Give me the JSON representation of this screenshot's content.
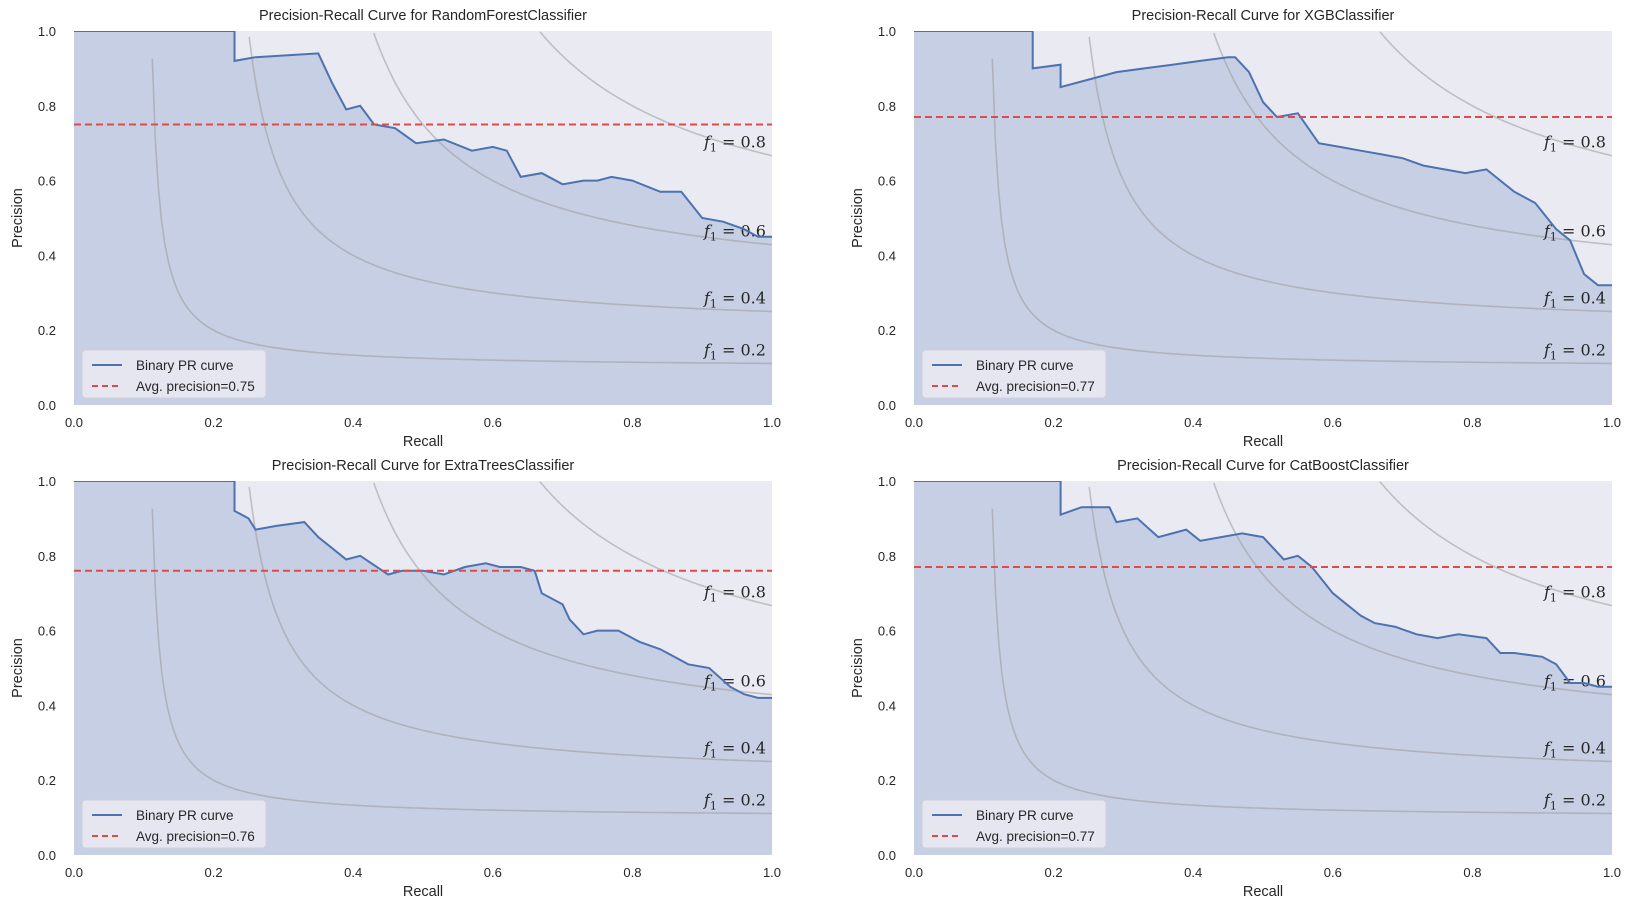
{
  "chart_data": [
    {
      "type": "line",
      "title": "Precision-Recall Curve for RandomForestClassifier",
      "xlabel": "Recall",
      "ylabel": "Precision",
      "xlim": [
        0,
        1
      ],
      "ylim": [
        0,
        1
      ],
      "xticks": [
        "0.0",
        "0.2",
        "0.4",
        "0.6",
        "0.8",
        "1.0"
      ],
      "yticks": [
        "0.0",
        "0.2",
        "0.4",
        "0.6",
        "0.8",
        "1.0"
      ],
      "grid": false,
      "legend_position": "bottom-left",
      "iso_f1": [
        {
          "f1": 0.2,
          "label": "0.2"
        },
        {
          "f1": 0.4,
          "label": "0.4"
        },
        {
          "f1": 0.6,
          "label": "0.6"
        },
        {
          "f1": 0.8,
          "label": "0.8"
        }
      ],
      "iso_prefix": "f",
      "iso_sub": "1",
      "iso_eq": " = ",
      "series": [
        {
          "name": "Binary PR curve",
          "step": "post",
          "color": "#4c72b0",
          "x": [
            0,
            0.23,
            0.23,
            0.26,
            0.35,
            0.37,
            0.39,
            0.41,
            0.43,
            0.46,
            0.49,
            0.53,
            0.57,
            0.6,
            0.62,
            0.64,
            0.67,
            0.7,
            0.73,
            0.75,
            0.77,
            0.8,
            0.84,
            0.87,
            0.9,
            0.93,
            0.96,
            0.98,
            1.0
          ],
          "y": [
            1.0,
            1.0,
            0.92,
            0.93,
            0.94,
            0.86,
            0.79,
            0.8,
            0.75,
            0.74,
            0.7,
            0.71,
            0.68,
            0.69,
            0.68,
            0.61,
            0.62,
            0.59,
            0.6,
            0.6,
            0.61,
            0.6,
            0.57,
            0.57,
            0.5,
            0.49,
            0.47,
            0.45,
            0.45
          ]
        },
        {
          "name": "Avg. precision=0.75",
          "type": "hline",
          "value": 0.75,
          "color": "#dd4c4c"
        }
      ]
    },
    {
      "type": "line",
      "title": "Precision-Recall Curve for XGBClassifier",
      "xlabel": "Recall",
      "ylabel": "Precision",
      "xlim": [
        0,
        1
      ],
      "ylim": [
        0,
        1
      ],
      "xticks": [
        "0.0",
        "0.2",
        "0.4",
        "0.6",
        "0.8",
        "1.0"
      ],
      "yticks": [
        "0.0",
        "0.2",
        "0.4",
        "0.6",
        "0.8",
        "1.0"
      ],
      "grid": false,
      "legend_position": "bottom-left",
      "iso_f1": [
        {
          "f1": 0.2,
          "label": "0.2"
        },
        {
          "f1": 0.4,
          "label": "0.4"
        },
        {
          "f1": 0.6,
          "label": "0.6"
        },
        {
          "f1": 0.8,
          "label": "0.8"
        }
      ],
      "iso_prefix": "f",
      "iso_sub": "1",
      "iso_eq": " = ",
      "series": [
        {
          "name": "Binary PR curve",
          "step": "post",
          "color": "#4c72b0",
          "x": [
            0,
            0.17,
            0.17,
            0.21,
            0.21,
            0.25,
            0.29,
            0.33,
            0.37,
            0.41,
            0.45,
            0.46,
            0.48,
            0.5,
            0.52,
            0.55,
            0.58,
            0.61,
            0.64,
            0.67,
            0.7,
            0.73,
            0.76,
            0.79,
            0.82,
            0.86,
            0.89,
            0.92,
            0.94,
            0.96,
            0.98,
            1.0
          ],
          "y": [
            1.0,
            1.0,
            0.9,
            0.91,
            0.85,
            0.87,
            0.89,
            0.9,
            0.91,
            0.92,
            0.93,
            0.93,
            0.89,
            0.81,
            0.77,
            0.78,
            0.7,
            0.69,
            0.68,
            0.67,
            0.66,
            0.64,
            0.63,
            0.62,
            0.63,
            0.57,
            0.54,
            0.47,
            0.44,
            0.35,
            0.32,
            0.32
          ]
        },
        {
          "name": "Avg. precision=0.77",
          "type": "hline",
          "value": 0.77,
          "color": "#dd4c4c"
        }
      ]
    },
    {
      "type": "line",
      "title": "Precision-Recall Curve for ExtraTreesClassifier",
      "xlabel": "Recall",
      "ylabel": "Precision",
      "xlim": [
        0,
        1
      ],
      "ylim": [
        0,
        1
      ],
      "xticks": [
        "0.0",
        "0.2",
        "0.4",
        "0.6",
        "0.8",
        "1.0"
      ],
      "yticks": [
        "0.0",
        "0.2",
        "0.4",
        "0.6",
        "0.8",
        "1.0"
      ],
      "grid": false,
      "legend_position": "bottom-left",
      "iso_f1": [
        {
          "f1": 0.2,
          "label": "0.2"
        },
        {
          "f1": 0.4,
          "label": "0.4"
        },
        {
          "f1": 0.6,
          "label": "0.6"
        },
        {
          "f1": 0.8,
          "label": "0.8"
        }
      ],
      "iso_prefix": "f",
      "iso_sub": "1",
      "iso_eq": " = ",
      "series": [
        {
          "name": "Binary PR curve",
          "step": "post",
          "color": "#4c72b0",
          "x": [
            0,
            0.23,
            0.23,
            0.25,
            0.26,
            0.29,
            0.33,
            0.35,
            0.37,
            0.39,
            0.41,
            0.45,
            0.47,
            0.5,
            0.53,
            0.56,
            0.59,
            0.61,
            0.64,
            0.66,
            0.67,
            0.7,
            0.71,
            0.73,
            0.75,
            0.78,
            0.81,
            0.84,
            0.86,
            0.88,
            0.91,
            0.94,
            0.96,
            0.98,
            1.0
          ],
          "y": [
            1.0,
            1.0,
            0.92,
            0.9,
            0.87,
            0.88,
            0.89,
            0.85,
            0.82,
            0.79,
            0.8,
            0.75,
            0.76,
            0.76,
            0.75,
            0.77,
            0.78,
            0.77,
            0.77,
            0.76,
            0.7,
            0.67,
            0.63,
            0.59,
            0.6,
            0.6,
            0.57,
            0.55,
            0.53,
            0.51,
            0.5,
            0.45,
            0.43,
            0.42,
            0.42
          ]
        },
        {
          "name": "Avg. precision=0.76",
          "type": "hline",
          "value": 0.76,
          "color": "#dd4c4c"
        }
      ]
    },
    {
      "type": "line",
      "title": "Precision-Recall Curve for CatBoostClassifier",
      "xlabel": "Recall",
      "ylabel": "Precision",
      "xlim": [
        0,
        1
      ],
      "ylim": [
        0,
        1
      ],
      "xticks": [
        "0.0",
        "0.2",
        "0.4",
        "0.6",
        "0.8",
        "1.0"
      ],
      "yticks": [
        "0.0",
        "0.2",
        "0.4",
        "0.6",
        "0.8",
        "1.0"
      ],
      "grid": false,
      "legend_position": "bottom-left",
      "iso_f1": [
        {
          "f1": 0.2,
          "label": "0.2"
        },
        {
          "f1": 0.4,
          "label": "0.4"
        },
        {
          "f1": 0.6,
          "label": "0.6"
        },
        {
          "f1": 0.8,
          "label": "0.8"
        }
      ],
      "iso_prefix": "f",
      "iso_sub": "1",
      "iso_eq": " = ",
      "series": [
        {
          "name": "Binary PR curve",
          "step": "post",
          "color": "#4c72b0",
          "x": [
            0,
            0.21,
            0.21,
            0.24,
            0.28,
            0.29,
            0.32,
            0.35,
            0.37,
            0.39,
            0.41,
            0.44,
            0.47,
            0.5,
            0.51,
            0.53,
            0.55,
            0.57,
            0.6,
            0.64,
            0.66,
            0.69,
            0.72,
            0.75,
            0.78,
            0.82,
            0.84,
            0.86,
            0.9,
            0.92,
            0.94,
            0.96,
            0.98,
            1.0
          ],
          "y": [
            1.0,
            1.0,
            0.91,
            0.93,
            0.93,
            0.89,
            0.9,
            0.85,
            0.86,
            0.87,
            0.84,
            0.85,
            0.86,
            0.85,
            0.83,
            0.79,
            0.8,
            0.77,
            0.7,
            0.64,
            0.62,
            0.61,
            0.59,
            0.58,
            0.59,
            0.58,
            0.54,
            0.54,
            0.53,
            0.51,
            0.46,
            0.46,
            0.45,
            0.45
          ]
        },
        {
          "name": "Avg. precision=0.77",
          "type": "hline",
          "value": 0.77,
          "color": "#dd4c4c"
        }
      ]
    }
  ]
}
